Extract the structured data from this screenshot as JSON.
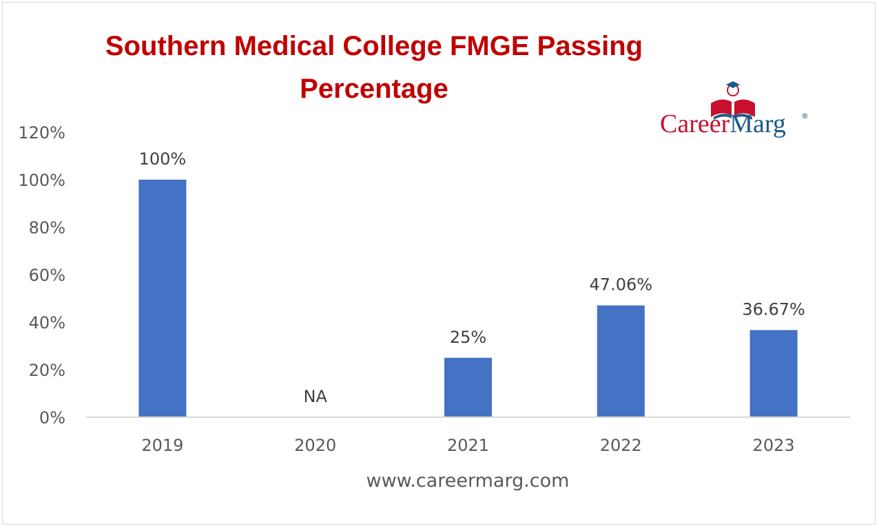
{
  "chart_data": {
    "type": "bar",
    "title": "Southern Medical College FMGE Passing Percentage",
    "title_lines": [
      "Southern Medical College FMGE Passing",
      "Percentage"
    ],
    "categories": [
      "2019",
      "2020",
      "2021",
      "2022",
      "2023"
    ],
    "values": [
      100,
      null,
      25,
      47.06,
      36.67
    ],
    "data_labels": [
      "100%",
      "NA",
      "25%",
      "47.06%",
      "36.67%"
    ],
    "y_ticks": [
      "0%",
      "20%",
      "40%",
      "60%",
      "80%",
      "100%",
      "120%"
    ],
    "ylim": [
      0,
      120
    ],
    "xlabel": "www.careermarg.com",
    "ylabel": "",
    "grid": false,
    "legend": "none",
    "bar_color": "#4472c4",
    "title_color": "#c00000"
  },
  "logo": {
    "part1": "Career",
    "part2": "Marg",
    "registered": "®",
    "color1": "#c8102e",
    "color2": "#1a5a8a"
  }
}
